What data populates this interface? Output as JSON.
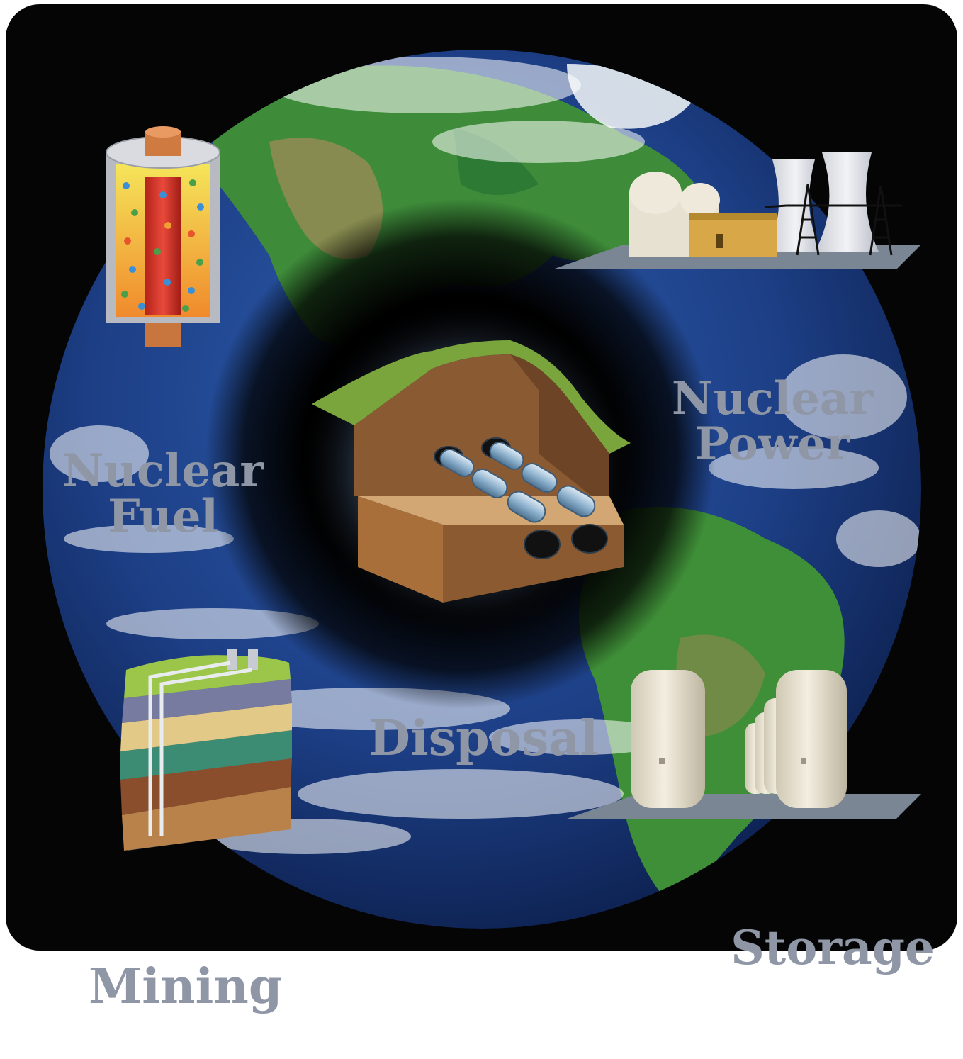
{
  "diagram": {
    "center": {
      "label": "Disposal"
    },
    "stages": [
      {
        "id": "nuclear-fuel",
        "lines": [
          "Nuclear",
          "Fuel"
        ]
      },
      {
        "id": "nuclear-power",
        "lines": [
          "Nuclear",
          "Power"
        ]
      },
      {
        "id": "storage",
        "lines": [
          "Storage"
        ]
      },
      {
        "id": "mining",
        "lines": [
          "Mining"
        ]
      }
    ]
  },
  "colors": {
    "background": "#050506",
    "ocean": "#1d3f86",
    "land": "#2f8a3a",
    "label": "#8f96a6",
    "halo": "#000000"
  }
}
